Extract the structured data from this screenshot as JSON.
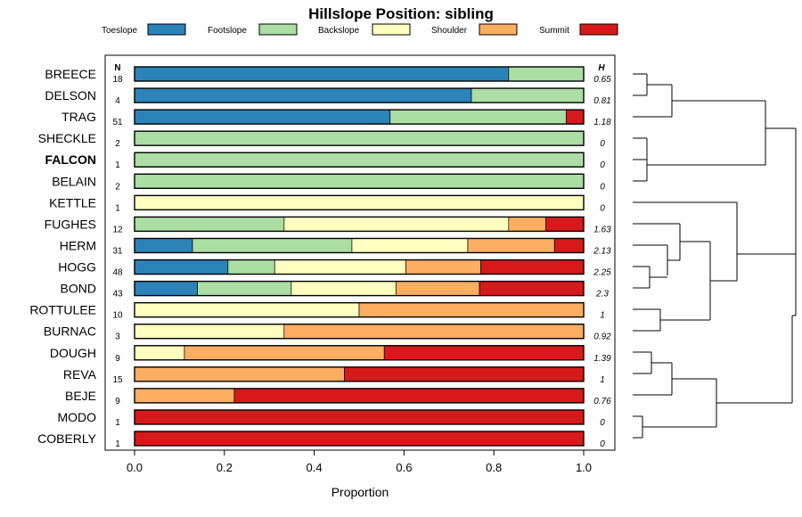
{
  "chart_data": {
    "type": "bar",
    "orientation": "horizontal-stacked",
    "title": "Hillslope Position: sibling",
    "xlabel": "Proportion",
    "ylabel": "",
    "xlim": [
      0,
      1
    ],
    "xticks": [
      "0.0",
      "0.2",
      "0.4",
      "0.6",
      "0.8",
      "1.0"
    ],
    "n_header": "N",
    "h_header": "H",
    "legend_position": "top",
    "series": [
      {
        "name": "Toeslope",
        "color": "#2b83ba"
      },
      {
        "name": "Footslope",
        "color": "#abdda4"
      },
      {
        "name": "Backslope",
        "color": "#ffffbf"
      },
      {
        "name": "Shoulder",
        "color": "#fdae61"
      },
      {
        "name": "Summit",
        "color": "#d7191c"
      }
    ],
    "categories": [
      {
        "name": "BREECE",
        "n": "18",
        "h": "0.65",
        "highlight": false,
        "values": [
          0.833,
          0.167,
          0,
          0,
          0
        ]
      },
      {
        "name": "DELSON",
        "n": "4",
        "h": "0.81",
        "highlight": false,
        "values": [
          0.75,
          0.25,
          0,
          0,
          0
        ]
      },
      {
        "name": "TRAG",
        "n": "51",
        "h": "1.18",
        "highlight": false,
        "values": [
          0.569,
          0.392,
          0,
          0,
          0.039
        ]
      },
      {
        "name": "SHECKLE",
        "n": "2",
        "h": "0",
        "highlight": false,
        "values": [
          0,
          1,
          0,
          0,
          0
        ]
      },
      {
        "name": "FALCON",
        "n": "1",
        "h": "0",
        "highlight": true,
        "values": [
          0,
          1,
          0,
          0,
          0
        ]
      },
      {
        "name": "BELAIN",
        "n": "2",
        "h": "0",
        "highlight": false,
        "values": [
          0,
          1,
          0,
          0,
          0
        ]
      },
      {
        "name": "KETTLE",
        "n": "1",
        "h": "0",
        "highlight": false,
        "values": [
          0,
          0,
          1,
          0,
          0
        ]
      },
      {
        "name": "FUGHES",
        "n": "12",
        "h": "1.63",
        "highlight": false,
        "values": [
          0,
          0.333,
          0.5,
          0.083,
          0.084
        ]
      },
      {
        "name": "HERM",
        "n": "31",
        "h": "2.13",
        "highlight": false,
        "values": [
          0.129,
          0.355,
          0.258,
          0.193,
          0.065
        ]
      },
      {
        "name": "HOGG",
        "n": "48",
        "h": "2.25",
        "highlight": false,
        "values": [
          0.208,
          0.104,
          0.292,
          0.167,
          0.229
        ]
      },
      {
        "name": "BOND",
        "n": "43",
        "h": "2.3",
        "highlight": false,
        "values": [
          0.14,
          0.209,
          0.233,
          0.186,
          0.232
        ]
      },
      {
        "name": "ROTTULEE",
        "n": "10",
        "h": "1",
        "highlight": false,
        "values": [
          0,
          0,
          0.5,
          0.5,
          0
        ]
      },
      {
        "name": "BURNAC",
        "n": "3",
        "h": "0.92",
        "highlight": false,
        "values": [
          0,
          0,
          0.333,
          0.667,
          0
        ]
      },
      {
        "name": "DOUGH",
        "n": "9",
        "h": "1.39",
        "highlight": false,
        "values": [
          0,
          0,
          0.111,
          0.445,
          0.444
        ]
      },
      {
        "name": "REVA",
        "n": "15",
        "h": "1",
        "highlight": false,
        "values": [
          0,
          0,
          0,
          0.467,
          0.533
        ]
      },
      {
        "name": "BEJE",
        "n": "9",
        "h": "0.76",
        "highlight": false,
        "values": [
          0,
          0,
          0,
          0.222,
          0.778
        ]
      },
      {
        "name": "MODO",
        "n": "1",
        "h": "0",
        "highlight": false,
        "values": [
          0,
          0,
          0,
          0,
          1
        ]
      },
      {
        "name": "COBERLY",
        "n": "1",
        "h": "0",
        "highlight": false,
        "values": [
          0,
          0,
          0,
          0,
          1
        ]
      }
    ],
    "dendrogram": "hierarchical clustering of soil series (right side)"
  }
}
